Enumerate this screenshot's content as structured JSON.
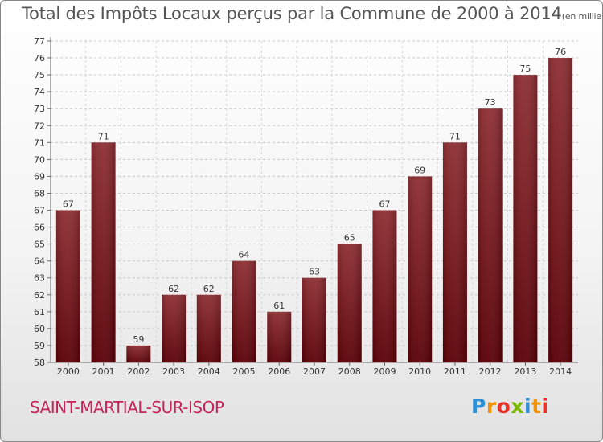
{
  "chart_data": {
    "type": "bar",
    "title": "Total des Impôts Locaux perçus par la Commune de 2000 à 2014",
    "subtitle": "(en milliers d'€)",
    "categories": [
      "2000",
      "2001",
      "2002",
      "2003",
      "2004",
      "2005",
      "2006",
      "2007",
      "2008",
      "2009",
      "2010",
      "2011",
      "2012",
      "2013",
      "2014"
    ],
    "values": [
      67,
      71,
      59,
      62,
      62,
      64,
      61,
      63,
      65,
      67,
      69,
      71,
      73,
      75,
      76
    ],
    "ylim": [
      58,
      77
    ],
    "yticks": [
      58,
      59,
      60,
      61,
      62,
      63,
      64,
      65,
      66,
      67,
      68,
      69,
      70,
      71,
      72,
      73,
      74,
      75,
      76,
      77
    ],
    "xlabel": "",
    "ylabel": "",
    "grid": true,
    "bar_color": "#7a1a1f"
  },
  "footer": {
    "commune": "SAINT-MARTIAL-SUR-ISOP",
    "commune_color": "#c4245a",
    "logo": {
      "letters": [
        "P",
        "r",
        "o",
        "x",
        "i",
        "t",
        "i"
      ],
      "colors": [
        "#2f8fd6",
        "#f39200",
        "#e8332a",
        "#7ab800",
        "#2f8fd6",
        "#f39200",
        "#e8332a"
      ]
    }
  }
}
